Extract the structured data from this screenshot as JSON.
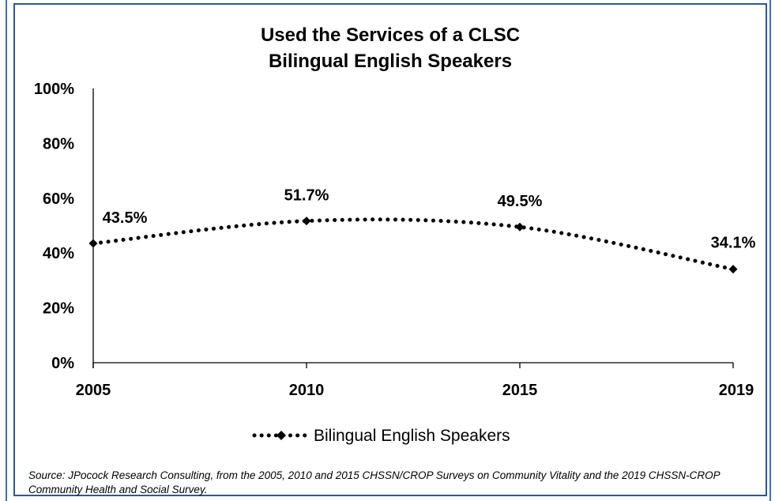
{
  "chart_data": {
    "type": "line",
    "title": "Used the Services of a CLSC",
    "subtitle": "Bilingual English Speakers",
    "categories": [
      "2005",
      "2010",
      "2015",
      "2019"
    ],
    "series": [
      {
        "name": "Bilingual English Speakers",
        "values": [
          43.5,
          51.7,
          49.5,
          34.1
        ],
        "labels": [
          "43.5%",
          "51.7%",
          "49.5%",
          "34.1%"
        ],
        "color": "#000000",
        "line_style": "dotted",
        "marker": "diamond"
      }
    ],
    "ylim": [
      0,
      100
    ],
    "y_ticks": [
      0,
      20,
      40,
      60,
      80,
      100
    ],
    "y_tick_labels": [
      "0%",
      "20%",
      "40%",
      "60%",
      "80%",
      "100%"
    ],
    "grid": false,
    "legend_position": "bottom"
  },
  "source_note": "Source: JPocock Research Consulting, from the 2005, 2010  and 2015  CHSSN/CROP Surveys on Community Vitality and the 2019  CHSSN-CROP Community Health and Social Survey.",
  "colors": {
    "frame": "#2f5597",
    "line": "#000000"
  }
}
